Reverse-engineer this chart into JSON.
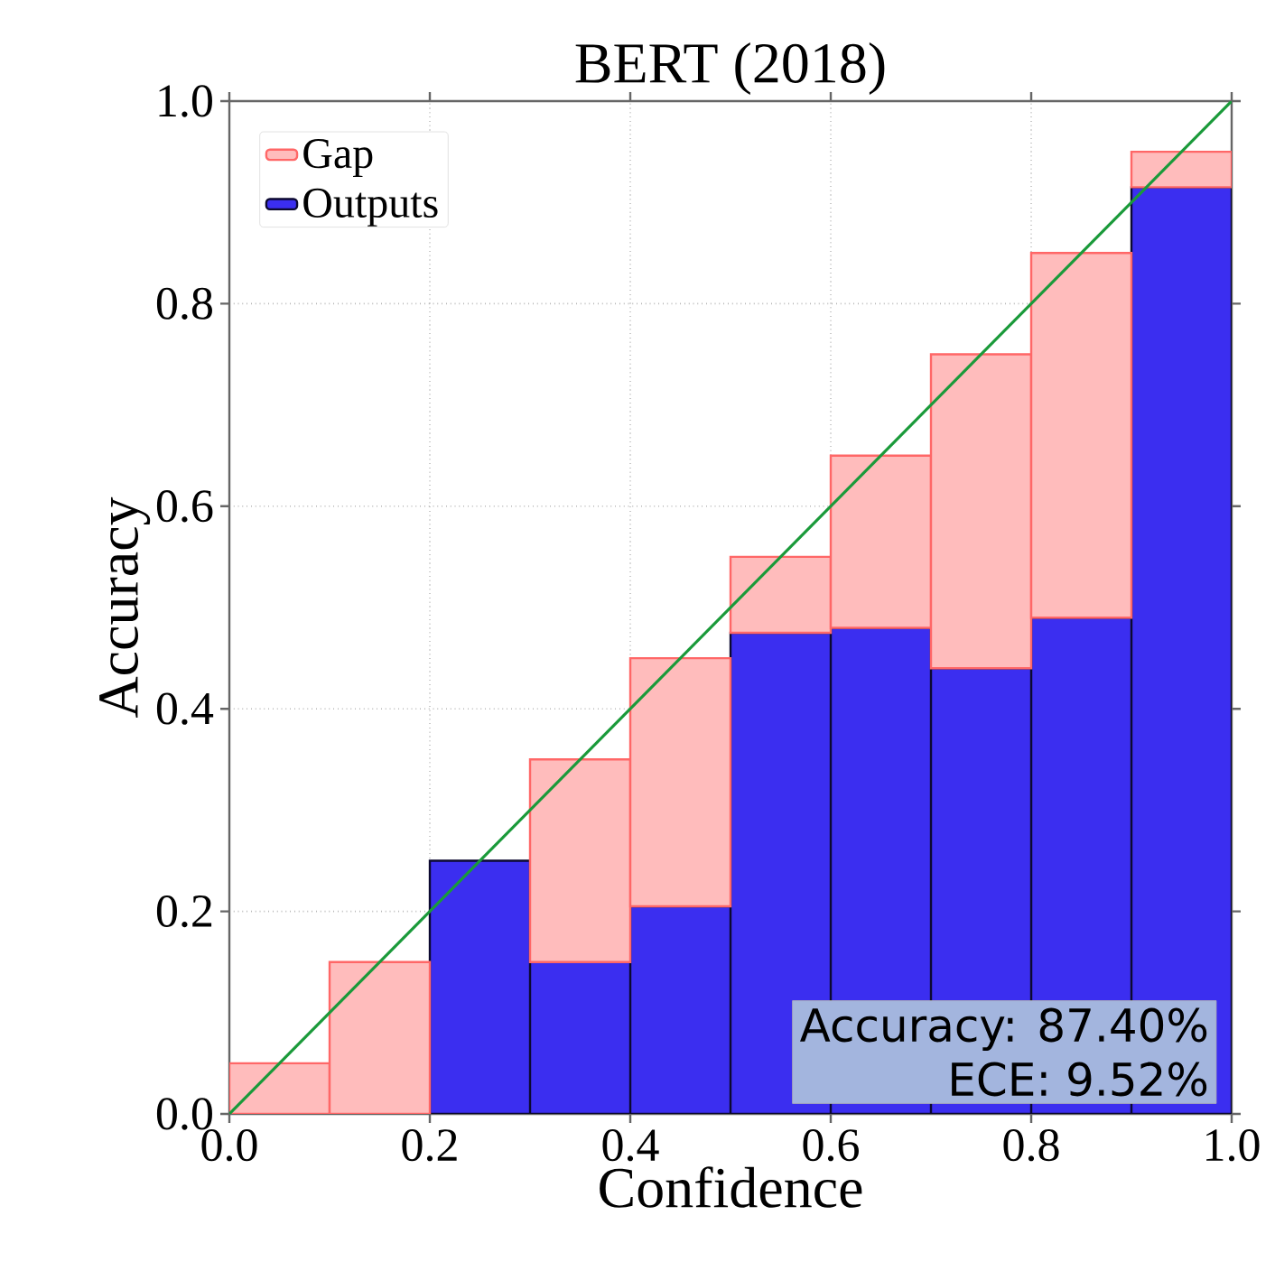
{
  "chart_data": {
    "type": "bar",
    "title": "BERT (2018)",
    "xlabel": "Confidence",
    "ylabel": "Accuracy",
    "x": [
      0.05,
      0.15,
      0.25,
      0.35,
      0.45,
      0.55,
      0.65,
      0.75,
      0.85,
      0.95
    ],
    "series": [
      {
        "name": "Outputs",
        "color": "#3b2ef0",
        "values": [
          0,
          0,
          0.25,
          0.15,
          0.205,
          0.475,
          0.48,
          0.44,
          0.49,
          0.915
        ]
      },
      {
        "name": "Gap",
        "color": "#ffbcbc",
        "values": [
          0.05,
          0.15,
          0,
          0.2,
          0.245,
          0.075,
          0.17,
          0.31,
          0.36,
          0.035
        ]
      },
      {
        "type": "line",
        "color": "#1a9a3a",
        "x": [
          0,
          1
        ],
        "values": [
          0,
          1
        ]
      }
    ],
    "xlim": [
      0,
      1
    ],
    "ylim": [
      0,
      1
    ],
    "xticks": [
      {
        "value": 0,
        "label": "0.0"
      },
      {
        "value": 0.2,
        "label": "0.2"
      },
      {
        "value": 0.4,
        "label": "0.4"
      },
      {
        "value": 0.6,
        "label": "0.6"
      },
      {
        "value": 0.8,
        "label": "0.8"
      },
      {
        "value": 1,
        "label": "1.0"
      }
    ],
    "yticks": [
      {
        "value": 0,
        "label": "0.0"
      },
      {
        "value": 0.2,
        "label": "0.2"
      },
      {
        "value": 0.4,
        "label": "0.4"
      },
      {
        "value": 0.6,
        "label": "0.6"
      },
      {
        "value": 0.8,
        "label": "0.8"
      },
      {
        "value": 1,
        "label": "1.0"
      }
    ],
    "stacked": true,
    "grid": true,
    "legend": "top left",
    "annotations": [
      "Accuracy: 87.40%",
      "ECE: 9.52%"
    ]
  }
}
